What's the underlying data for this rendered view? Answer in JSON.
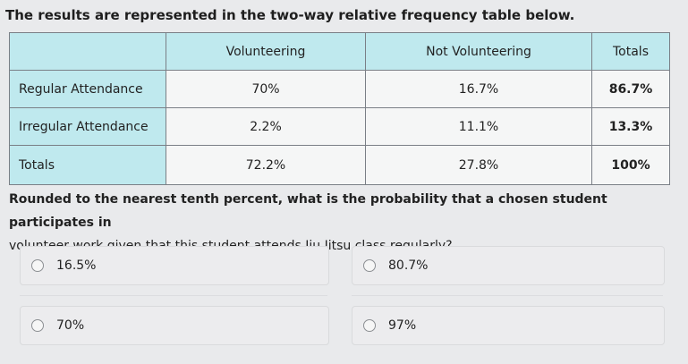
{
  "intro_text": "The results are represented in the two-way relative frequency table below.",
  "table": {
    "columns": [
      "",
      "Volunteering",
      "Not Volunteering",
      "Totals"
    ],
    "rows": [
      {
        "label": "Regular Attendance",
        "cells": [
          "70%",
          "16.7%",
          "86.7%"
        ]
      },
      {
        "label": "Irregular Attendance",
        "cells": [
          "2.2%",
          "11.1%",
          "13.3%"
        ]
      },
      {
        "label": "Totals",
        "cells": [
          "72.2%",
          "27.8%",
          "100%"
        ]
      }
    ]
  },
  "question": {
    "line1": "Rounded to the nearest tenth percent, what is the probability that a chosen student participates in",
    "line2": "volunteer work given that this student attends Jiu Jitsu class regularly?"
  },
  "choices": [
    "16.5%",
    "80.7%",
    "70%",
    "97%"
  ],
  "colors": {
    "header_bg": "#bfe9ee",
    "page_bg": "#e9eaec"
  }
}
